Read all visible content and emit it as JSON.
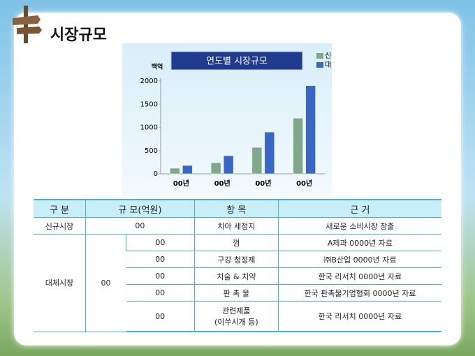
{
  "header": {
    "title": "시장규모"
  },
  "chart_data": {
    "type": "bar",
    "title": "연도별 시장규모",
    "y_label": "백억",
    "categories": [
      "00년",
      "00년",
      "00년",
      "00년"
    ],
    "series": [
      {
        "name": "신규",
        "color": "#7fa88a",
        "values": [
          120,
          240,
          570,
          1200
        ]
      },
      {
        "name": "대체",
        "color": "#3a66c4",
        "values": [
          180,
          390,
          900,
          1900
        ]
      }
    ],
    "ylim": [
      0,
      2000
    ],
    "yticks": [
      0,
      500,
      1000,
      1500,
      2000
    ],
    "legend": "top-right"
  },
  "table": {
    "headers": [
      "구 분",
      "규 모(억원)",
      "항 목",
      "근 거"
    ],
    "new_row": {
      "category": "신규시장",
      "size": "00",
      "item": "치아 세정지",
      "source": "새로운 소비시장 창출"
    },
    "replacement": {
      "category": "대체시장",
      "size": "00",
      "rows": [
        {
          "size": "00",
          "item": "껌",
          "source": "A제과 0000년 자료"
        },
        {
          "size": "00",
          "item": "구강 청정제",
          "source": "㈜B산업 0000년 자료"
        },
        {
          "size": "00",
          "item": "치술 & 치약",
          "source": "한국 리서치 0000년 자료"
        },
        {
          "size": "00",
          "item": "판 촉 물",
          "source": "한국 판촉물기업협회 0000년 자료"
        },
        {
          "size": "00",
          "item": "관련제품\n(이쑤시개 등)",
          "source": "한국 리서치 0000년 자료"
        }
      ]
    }
  }
}
